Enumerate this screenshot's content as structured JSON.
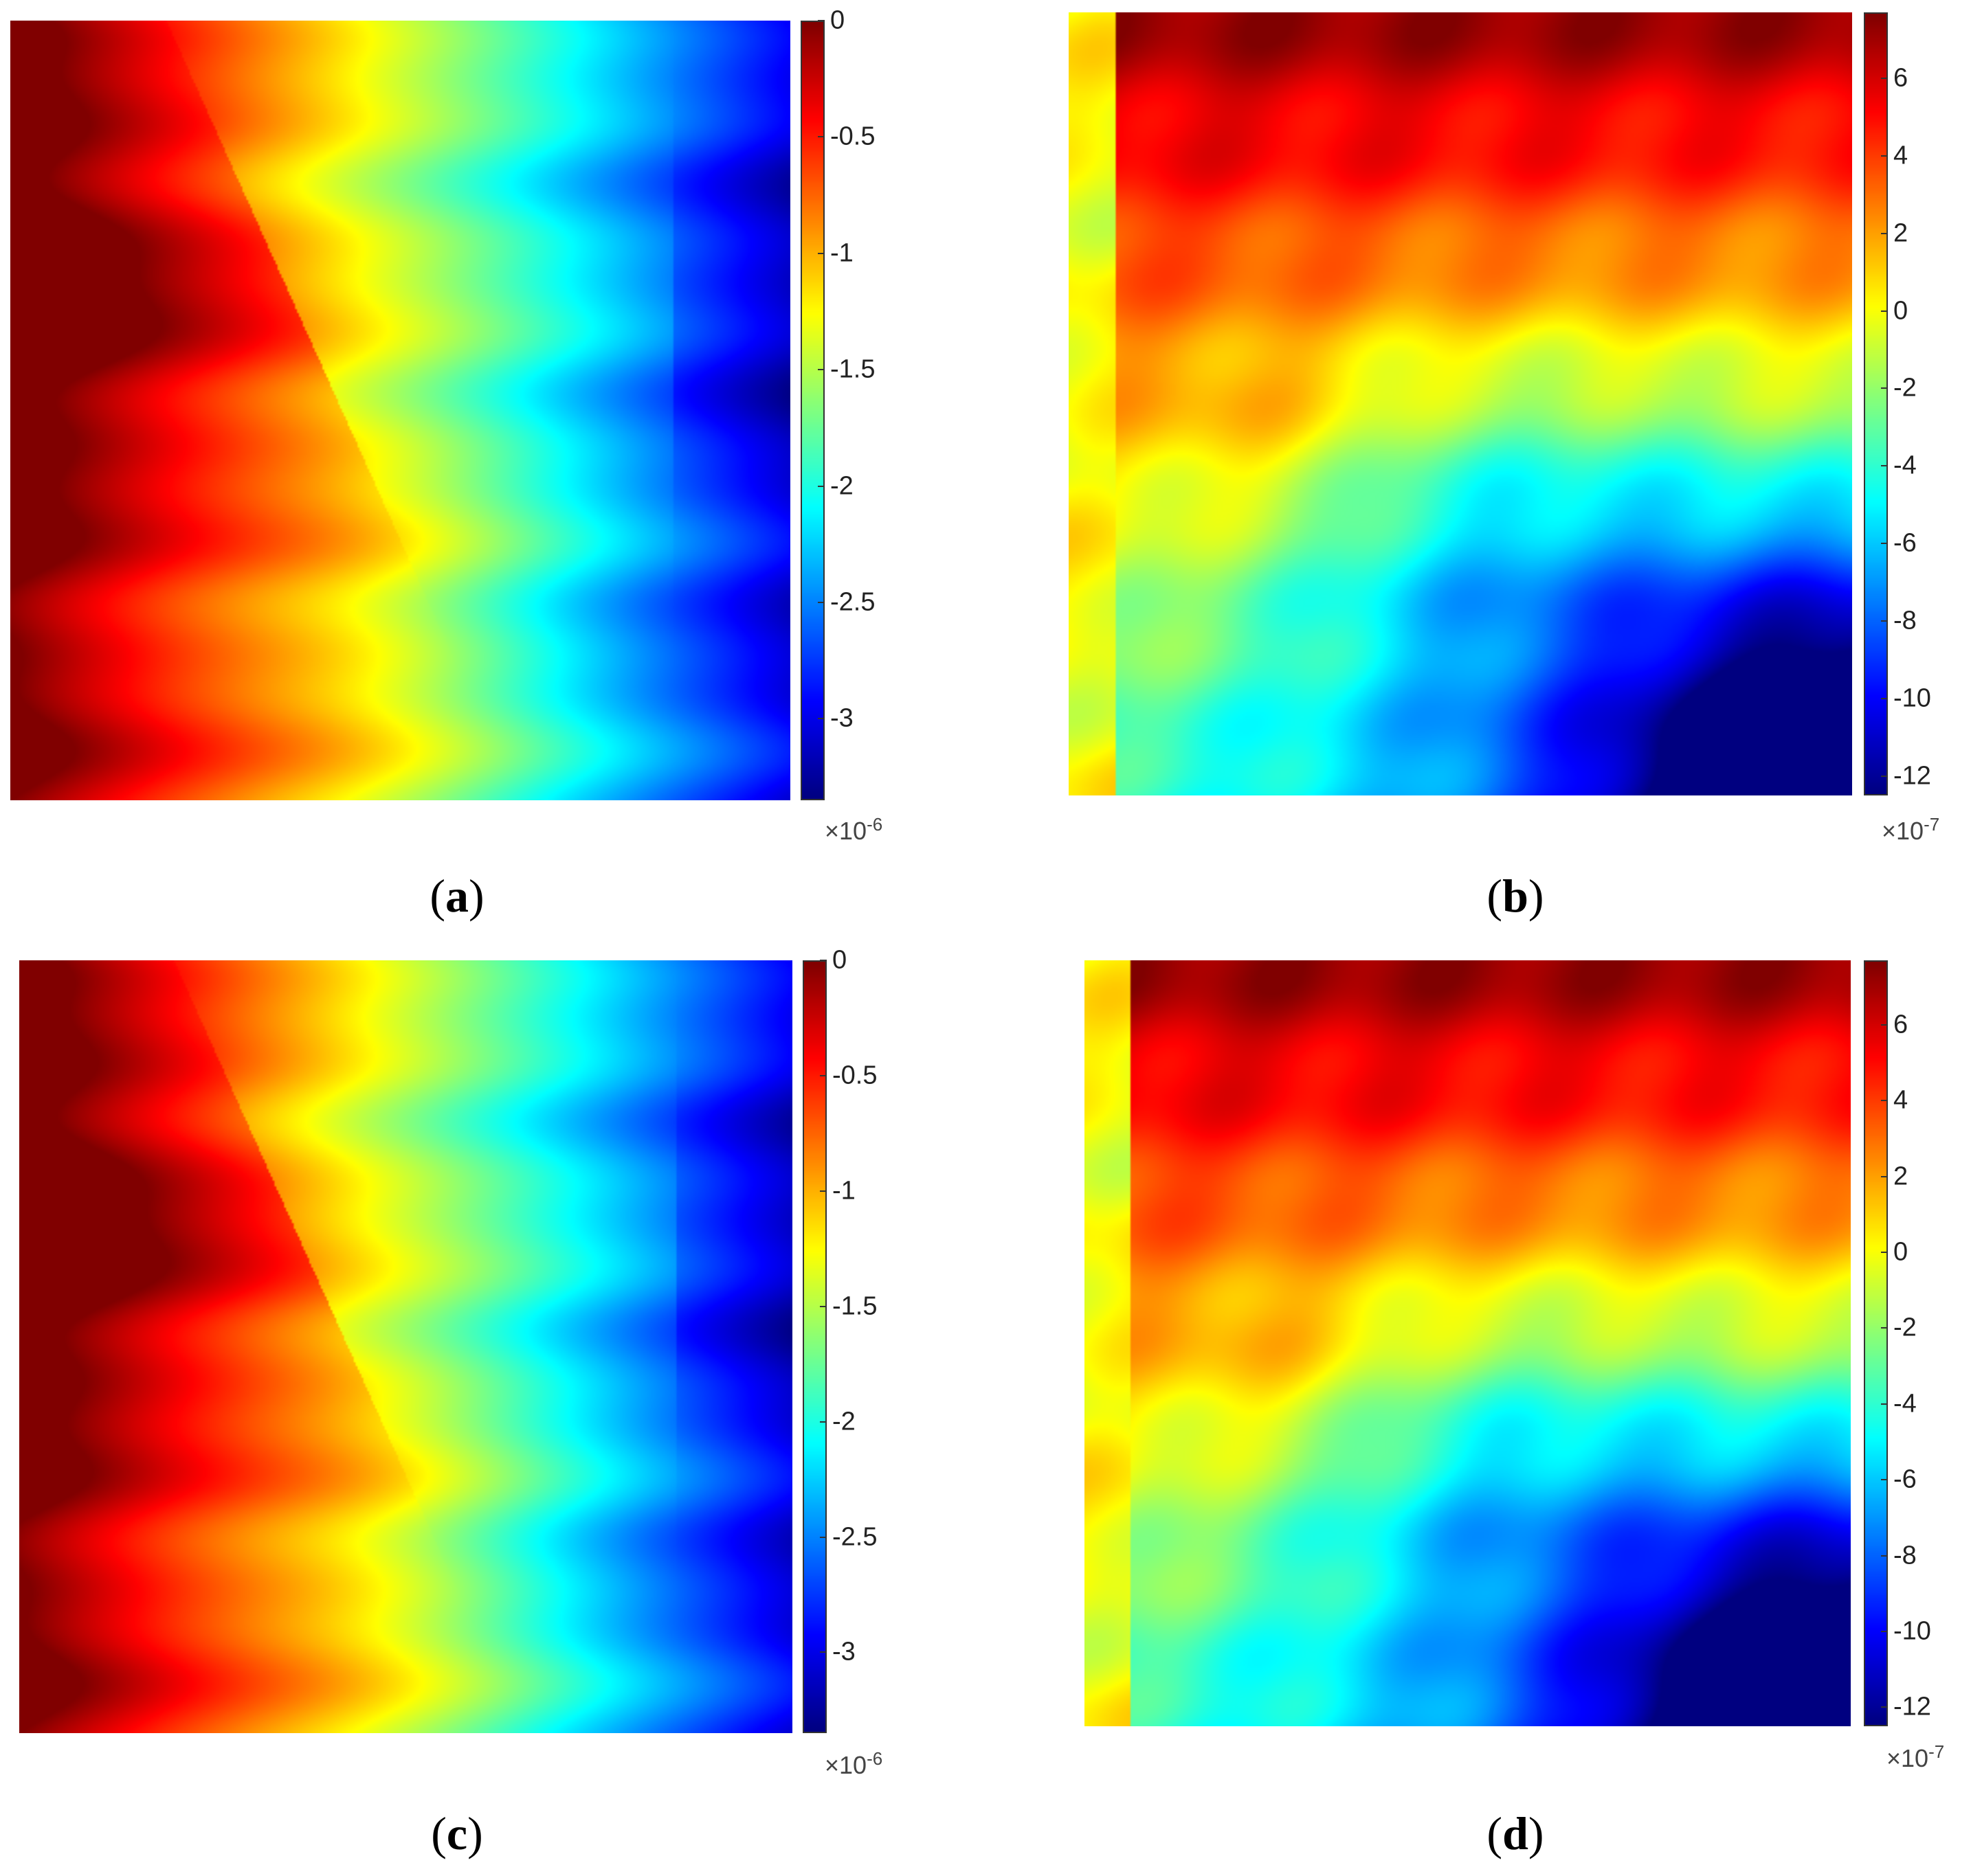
{
  "chart_data": [
    {
      "type": "heatmap",
      "panel_label": "a",
      "colormap": "jet",
      "colorbar": {
        "ticks": [
          "0",
          "-0.5",
          "-1",
          "-1.5",
          "-2",
          "-2.5",
          "-3"
        ],
        "tick_values": [
          0,
          -0.5,
          -1,
          -1.5,
          -2,
          -2.5,
          -3
        ],
        "range": [
          -3.35,
          0
        ],
        "multiplier_base": "×10",
        "multiplier_exponent": "-6"
      },
      "field": "left-high-to-right-low"
    },
    {
      "type": "heatmap",
      "panel_label": "b",
      "colormap": "jet",
      "colorbar": {
        "ticks": [
          "6",
          "4",
          "2",
          "0",
          "-2",
          "-4",
          "-6",
          "-8",
          "-10",
          "-12"
        ],
        "tick_values": [
          6,
          4,
          2,
          0,
          -2,
          -4,
          -6,
          -8,
          -10,
          -12
        ],
        "range": [
          -12.5,
          7.7
        ],
        "multiplier_base": "×10",
        "multiplier_exponent": "-7"
      },
      "field": "top-high-to-bottom-right-low"
    },
    {
      "type": "heatmap",
      "panel_label": "c",
      "colormap": "jet",
      "colorbar": {
        "ticks": [
          "0",
          "-0.5",
          "-1",
          "-1.5",
          "-2",
          "-2.5",
          "-3"
        ],
        "tick_values": [
          0,
          -0.5,
          -1,
          -1.5,
          -2,
          -2.5,
          -3
        ],
        "range": [
          -3.35,
          0
        ],
        "multiplier_base": "×10",
        "multiplier_exponent": "-6"
      },
      "field": "left-high-to-right-low"
    },
    {
      "type": "heatmap",
      "panel_label": "d",
      "colormap": "jet",
      "colorbar": {
        "ticks": [
          "6",
          "4",
          "2",
          "0",
          "-2",
          "-4",
          "-6",
          "-8",
          "-10",
          "-12"
        ],
        "tick_values": [
          6,
          4,
          2,
          0,
          -2,
          -4,
          -6,
          -8,
          -10,
          -12
        ],
        "range": [
          -12.5,
          7.7
        ],
        "multiplier_base": "×10",
        "multiplier_exponent": "-7"
      },
      "field": "top-high-to-bottom-right-low"
    }
  ]
}
